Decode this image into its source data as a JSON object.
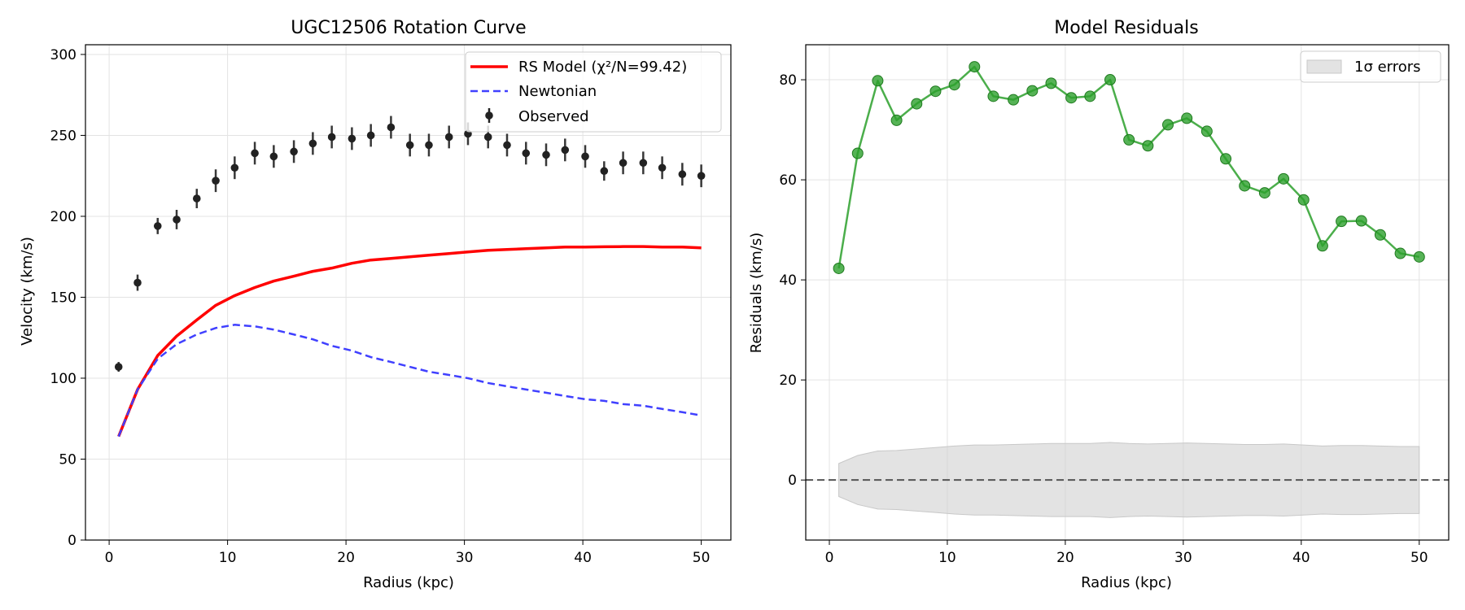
{
  "chart_data": [
    {
      "type": "line",
      "title": "UGC12506 Rotation Curve",
      "xlabel": "Radius (kpc)",
      "ylabel": "Velocity (km/s)",
      "xlim": [
        -2,
        52.5
      ],
      "ylim": [
        0,
        306
      ],
      "xticks": [
        0,
        10,
        20,
        30,
        40,
        50
      ],
      "yticks": [
        0,
        50,
        100,
        150,
        200,
        250,
        300
      ],
      "grid": true,
      "legend_position": "top-right",
      "series": [
        {
          "name": "RS Model (χ²/N=99.42)",
          "kind": "line",
          "color": "#ff0000",
          "x": [
            0.8,
            2.4,
            4.1,
            5.7,
            7.4,
            9.0,
            10.6,
            12.3,
            13.9,
            15.6,
            17.2,
            18.8,
            20.5,
            22.1,
            23.8,
            25.4,
            27.0,
            28.7,
            30.3,
            32.0,
            33.6,
            35.2,
            36.9,
            38.5,
            40.2,
            41.8,
            43.4,
            45.1,
            46.7,
            48.4,
            50.0
          ],
          "y": [
            64,
            93,
            114,
            126,
            136,
            145,
            151,
            156,
            160,
            163,
            166,
            168,
            171,
            173,
            174,
            175,
            176,
            177,
            178,
            179,
            179.5,
            180,
            180.5,
            181,
            181,
            181.2,
            181.3,
            181.3,
            181,
            181,
            180.5
          ]
        },
        {
          "name": "Newtonian",
          "kind": "line",
          "dash": true,
          "color": "#4040ff",
          "x": [
            0.8,
            2.4,
            4.1,
            5.7,
            7.4,
            9.0,
            10.6,
            12.3,
            13.9,
            15.6,
            17.2,
            18.8,
            20.5,
            22.1,
            23.8,
            25.4,
            27.0,
            28.7,
            30.3,
            32.0,
            33.6,
            35.2,
            36.9,
            38.5,
            40.2,
            41.8,
            43.4,
            45.1,
            46.7,
            48.4,
            50.0
          ],
          "y": [
            64,
            93,
            112,
            121,
            127,
            131,
            133,
            132,
            130,
            127,
            124,
            120,
            117,
            113,
            110,
            107,
            104,
            102,
            100,
            97,
            95,
            93,
            91,
            89,
            87,
            86,
            84,
            83,
            81,
            79,
            77
          ]
        },
        {
          "name": "Observed",
          "kind": "errorbar",
          "color": "#222222",
          "x": [
            0.8,
            2.4,
            4.1,
            5.7,
            7.4,
            9.0,
            10.6,
            12.3,
            13.9,
            15.6,
            17.2,
            18.8,
            20.5,
            22.1,
            23.8,
            25.4,
            27.0,
            28.7,
            30.3,
            32.0,
            33.6,
            35.2,
            36.9,
            38.5,
            40.2,
            41.8,
            43.4,
            45.1,
            46.7,
            48.4,
            50.0
          ],
          "y": [
            107,
            159,
            194,
            198,
            211,
            222,
            230,
            239,
            237,
            240,
            245,
            249,
            248,
            250,
            255,
            244,
            244,
            249,
            251,
            249,
            244,
            239,
            238,
            241,
            237,
            228,
            233,
            233,
            230,
            226,
            225
          ],
          "err": [
            3,
            5,
            5,
            6,
            6,
            7,
            7,
            7,
            7,
            7,
            7,
            7,
            7,
            7,
            7,
            7,
            7,
            7,
            7,
            7,
            7,
            7,
            7,
            7,
            7,
            6,
            7,
            7,
            7,
            7,
            7
          ]
        }
      ]
    },
    {
      "type": "line",
      "title": "Model Residuals",
      "xlabel": "Radius (kpc)",
      "ylabel": "Residuals (km/s)",
      "xlim": [
        -2,
        52.5
      ],
      "ylim": [
        -12,
        87
      ],
      "xticks": [
        0,
        10,
        20,
        30,
        40,
        50
      ],
      "yticks": [
        0,
        20,
        40,
        60,
        80
      ],
      "grid": true,
      "legend_position": "top-right",
      "zero_line": 0,
      "series": [
        {
          "name": "",
          "kind": "line-markers",
          "color": "#2ca02c",
          "x": [
            0.8,
            2.4,
            4.1,
            5.7,
            7.4,
            9.0,
            10.6,
            12.3,
            13.9,
            15.6,
            17.2,
            18.8,
            20.5,
            22.1,
            23.8,
            25.4,
            27.0,
            28.7,
            30.3,
            32.0,
            33.6,
            35.2,
            36.9,
            38.5,
            40.2,
            41.8,
            43.4,
            45.1,
            46.7,
            48.4,
            50.0
          ],
          "y": [
            42.3,
            65.3,
            79.8,
            71.9,
            75.2,
            77.7,
            79.0,
            82.6,
            76.7,
            76.0,
            77.8,
            79.3,
            76.4,
            76.7,
            80.0,
            68.0,
            66.8,
            71.0,
            72.3,
            69.7,
            64.2,
            58.8,
            57.4,
            60.2,
            56.0,
            46.8,
            51.7,
            51.8,
            49.0,
            45.3,
            44.6
          ]
        },
        {
          "name": "1σ errors",
          "kind": "band",
          "color": "#d0d0d0",
          "x": [
            0.8,
            2.4,
            4.1,
            5.7,
            7.4,
            9.0,
            10.6,
            12.3,
            13.9,
            15.6,
            17.2,
            18.8,
            20.5,
            22.1,
            23.8,
            25.4,
            27.0,
            28.7,
            30.3,
            32.0,
            33.6,
            35.2,
            36.9,
            38.5,
            40.2,
            41.8,
            43.4,
            45.1,
            46.7,
            48.4,
            50.0
          ],
          "err": [
            3.3,
            4.9,
            5.8,
            5.9,
            6.2,
            6.5,
            6.8,
            7.0,
            7.0,
            7.1,
            7.2,
            7.3,
            7.3,
            7.3,
            7.5,
            7.3,
            7.2,
            7.3,
            7.4,
            7.3,
            7.2,
            7.1,
            7.1,
            7.2,
            7.0,
            6.8,
            6.9,
            6.9,
            6.8,
            6.7,
            6.7
          ]
        }
      ]
    }
  ]
}
